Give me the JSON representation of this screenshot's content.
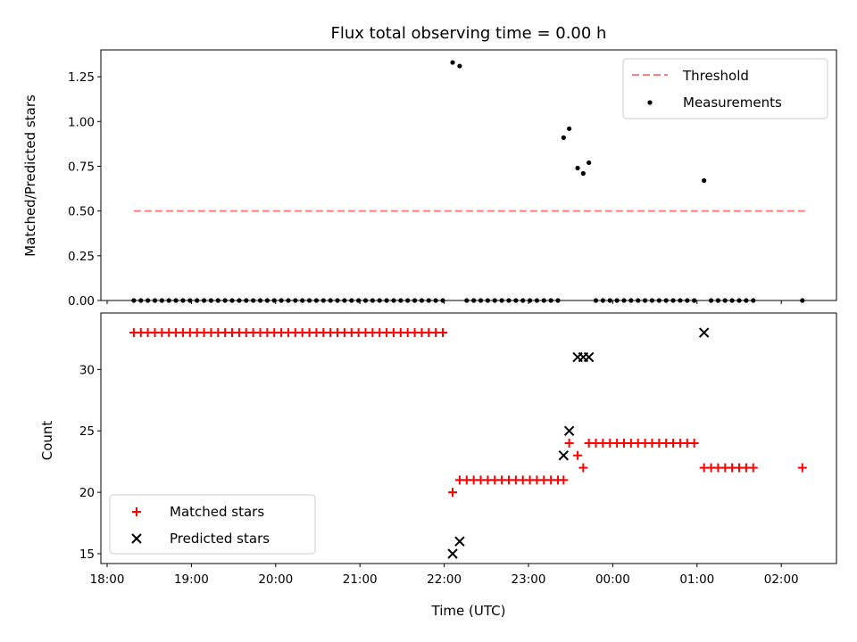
{
  "chart_data": [
    {
      "type": "scatter",
      "title": "Flux total observing time = 0.00 h",
      "xlabel": "",
      "ylabel": "Matched/Predicted stars",
      "ylim": [
        0,
        1.4
      ],
      "yticks": [
        "0.00",
        "0.25",
        "0.50",
        "0.75",
        "1.00",
        "1.25"
      ],
      "legend": {
        "placement": "top-right",
        "entries": [
          "Threshold",
          "Measurements"
        ]
      },
      "series": [
        {
          "name": "Threshold",
          "kind": "dashed-line",
          "color": "#ff7f7f",
          "x": [
            "18:19",
            "02:17"
          ],
          "y": [
            0.5,
            0.5
          ]
        },
        {
          "name": "Measurements",
          "kind": "dots",
          "color": "#000000",
          "points": [
            [
              "18:19",
              0
            ],
            [
              "18:24",
              0
            ],
            [
              "18:29",
              0
            ],
            [
              "18:34",
              0
            ],
            [
              "18:39",
              0
            ],
            [
              "18:44",
              0
            ],
            [
              "18:49",
              0
            ],
            [
              "18:54",
              0
            ],
            [
              "18:59",
              0
            ],
            [
              "19:04",
              0
            ],
            [
              "19:09",
              0
            ],
            [
              "19:14",
              0
            ],
            [
              "19:19",
              0
            ],
            [
              "19:24",
              0
            ],
            [
              "19:29",
              0
            ],
            [
              "19:34",
              0
            ],
            [
              "19:39",
              0
            ],
            [
              "19:44",
              0
            ],
            [
              "19:49",
              0
            ],
            [
              "19:54",
              0
            ],
            [
              "19:59",
              0
            ],
            [
              "20:04",
              0
            ],
            [
              "20:09",
              0
            ],
            [
              "20:14",
              0
            ],
            [
              "20:19",
              0
            ],
            [
              "20:24",
              0
            ],
            [
              "20:29",
              0
            ],
            [
              "20:34",
              0
            ],
            [
              "20:39",
              0
            ],
            [
              "20:44",
              0
            ],
            [
              "20:49",
              0
            ],
            [
              "20:54",
              0
            ],
            [
              "20:59",
              0
            ],
            [
              "21:04",
              0
            ],
            [
              "21:09",
              0
            ],
            [
              "21:14",
              0
            ],
            [
              "21:19",
              0
            ],
            [
              "21:24",
              0
            ],
            [
              "21:29",
              0
            ],
            [
              "21:34",
              0
            ],
            [
              "21:39",
              0
            ],
            [
              "21:44",
              0
            ],
            [
              "21:49",
              0
            ],
            [
              "21:54",
              0
            ],
            [
              "21:59",
              0
            ],
            [
              "22:06",
              1.33
            ],
            [
              "22:11",
              1.31
            ],
            [
              "22:16",
              0
            ],
            [
              "22:21",
              0
            ],
            [
              "22:26",
              0
            ],
            [
              "22:31",
              0
            ],
            [
              "22:36",
              0
            ],
            [
              "22:41",
              0
            ],
            [
              "22:46",
              0
            ],
            [
              "22:51",
              0
            ],
            [
              "22:56",
              0
            ],
            [
              "23:01",
              0
            ],
            [
              "23:06",
              0
            ],
            [
              "23:11",
              0
            ],
            [
              "23:16",
              0
            ],
            [
              "23:21",
              0
            ],
            [
              "23:25",
              0.91
            ],
            [
              "23:29",
              0.96
            ],
            [
              "23:35",
              0.74
            ],
            [
              "23:39",
              0.71
            ],
            [
              "23:43",
              0.77
            ],
            [
              "23:48",
              0
            ],
            [
              "23:53",
              0
            ],
            [
              "23:58",
              0
            ],
            [
              "00:03",
              0
            ],
            [
              "00:08",
              0
            ],
            [
              "00:13",
              0
            ],
            [
              "00:18",
              0
            ],
            [
              "00:23",
              0
            ],
            [
              "00:28",
              0
            ],
            [
              "00:33",
              0
            ],
            [
              "00:38",
              0
            ],
            [
              "00:43",
              0
            ],
            [
              "00:48",
              0
            ],
            [
              "00:53",
              0
            ],
            [
              "00:58",
              0
            ],
            [
              "01:05",
              0.67
            ],
            [
              "01:10",
              0
            ],
            [
              "01:15",
              0
            ],
            [
              "01:20",
              0
            ],
            [
              "01:25",
              0
            ],
            [
              "01:30",
              0
            ],
            [
              "01:35",
              0
            ],
            [
              "01:40",
              0
            ],
            [
              "02:15",
              0
            ]
          ]
        }
      ]
    },
    {
      "type": "scatter",
      "title": "",
      "xlabel": "Time (UTC)",
      "ylabel": "Count",
      "ylim": [
        14.2,
        34.6
      ],
      "yticks": [
        "15",
        "20",
        "25",
        "30"
      ],
      "xticks": [
        "18:00",
        "19:00",
        "20:00",
        "21:00",
        "22:00",
        "23:00",
        "00:00",
        "01:00",
        "02:00"
      ],
      "legend": {
        "placement": "bottom-left",
        "entries": [
          "Matched stars",
          "Predicted stars"
        ]
      },
      "series": [
        {
          "name": "Matched stars",
          "marker": "plus",
          "color": "#ff0000",
          "points": [
            [
              "18:19",
              33
            ],
            [
              "18:24",
              33
            ],
            [
              "18:29",
              33
            ],
            [
              "18:34",
              33
            ],
            [
              "18:39",
              33
            ],
            [
              "18:44",
              33
            ],
            [
              "18:49",
              33
            ],
            [
              "18:54",
              33
            ],
            [
              "18:59",
              33
            ],
            [
              "19:04",
              33
            ],
            [
              "19:09",
              33
            ],
            [
              "19:14",
              33
            ],
            [
              "19:19",
              33
            ],
            [
              "19:24",
              33
            ],
            [
              "19:29",
              33
            ],
            [
              "19:34",
              33
            ],
            [
              "19:39",
              33
            ],
            [
              "19:44",
              33
            ],
            [
              "19:49",
              33
            ],
            [
              "19:54",
              33
            ],
            [
              "19:59",
              33
            ],
            [
              "20:04",
              33
            ],
            [
              "20:09",
              33
            ],
            [
              "20:14",
              33
            ],
            [
              "20:19",
              33
            ],
            [
              "20:24",
              33
            ],
            [
              "20:29",
              33
            ],
            [
              "20:34",
              33
            ],
            [
              "20:39",
              33
            ],
            [
              "20:44",
              33
            ],
            [
              "20:49",
              33
            ],
            [
              "20:54",
              33
            ],
            [
              "20:59",
              33
            ],
            [
              "21:04",
              33
            ],
            [
              "21:09",
              33
            ],
            [
              "21:14",
              33
            ],
            [
              "21:19",
              33
            ],
            [
              "21:24",
              33
            ],
            [
              "21:29",
              33
            ],
            [
              "21:34",
              33
            ],
            [
              "21:39",
              33
            ],
            [
              "21:44",
              33
            ],
            [
              "21:49",
              33
            ],
            [
              "21:54",
              33
            ],
            [
              "21:59",
              33
            ],
            [
              "22:06",
              20
            ],
            [
              "22:11",
              21
            ],
            [
              "22:16",
              21
            ],
            [
              "22:21",
              21
            ],
            [
              "22:26",
              21
            ],
            [
              "22:31",
              21
            ],
            [
              "22:36",
              21
            ],
            [
              "22:41",
              21
            ],
            [
              "22:46",
              21
            ],
            [
              "22:51",
              21
            ],
            [
              "22:56",
              21
            ],
            [
              "23:01",
              21
            ],
            [
              "23:06",
              21
            ],
            [
              "23:11",
              21
            ],
            [
              "23:16",
              21
            ],
            [
              "23:21",
              21
            ],
            [
              "23:25",
              21
            ],
            [
              "23:29",
              24
            ],
            [
              "23:35",
              23
            ],
            [
              "23:39",
              22
            ],
            [
              "23:43",
              24
            ],
            [
              "23:48",
              24
            ],
            [
              "23:53",
              24
            ],
            [
              "23:58",
              24
            ],
            [
              "00:03",
              24
            ],
            [
              "00:08",
              24
            ],
            [
              "00:13",
              24
            ],
            [
              "00:18",
              24
            ],
            [
              "00:23",
              24
            ],
            [
              "00:28",
              24
            ],
            [
              "00:33",
              24
            ],
            [
              "00:38",
              24
            ],
            [
              "00:43",
              24
            ],
            [
              "00:48",
              24
            ],
            [
              "00:53",
              24
            ],
            [
              "00:58",
              24
            ],
            [
              "01:05",
              22
            ],
            [
              "01:10",
              22
            ],
            [
              "01:15",
              22
            ],
            [
              "01:20",
              22
            ],
            [
              "01:25",
              22
            ],
            [
              "01:30",
              22
            ],
            [
              "01:35",
              22
            ],
            [
              "01:40",
              22
            ],
            [
              "02:15",
              22
            ]
          ]
        },
        {
          "name": "Predicted stars",
          "marker": "x",
          "color": "#000000",
          "points": [
            [
              "22:06",
              15
            ],
            [
              "22:11",
              16
            ],
            [
              "23:25",
              23
            ],
            [
              "23:29",
              25
            ],
            [
              "23:35",
              31
            ],
            [
              "23:39",
              31
            ],
            [
              "23:43",
              31
            ],
            [
              "01:05",
              33
            ]
          ]
        }
      ]
    }
  ]
}
